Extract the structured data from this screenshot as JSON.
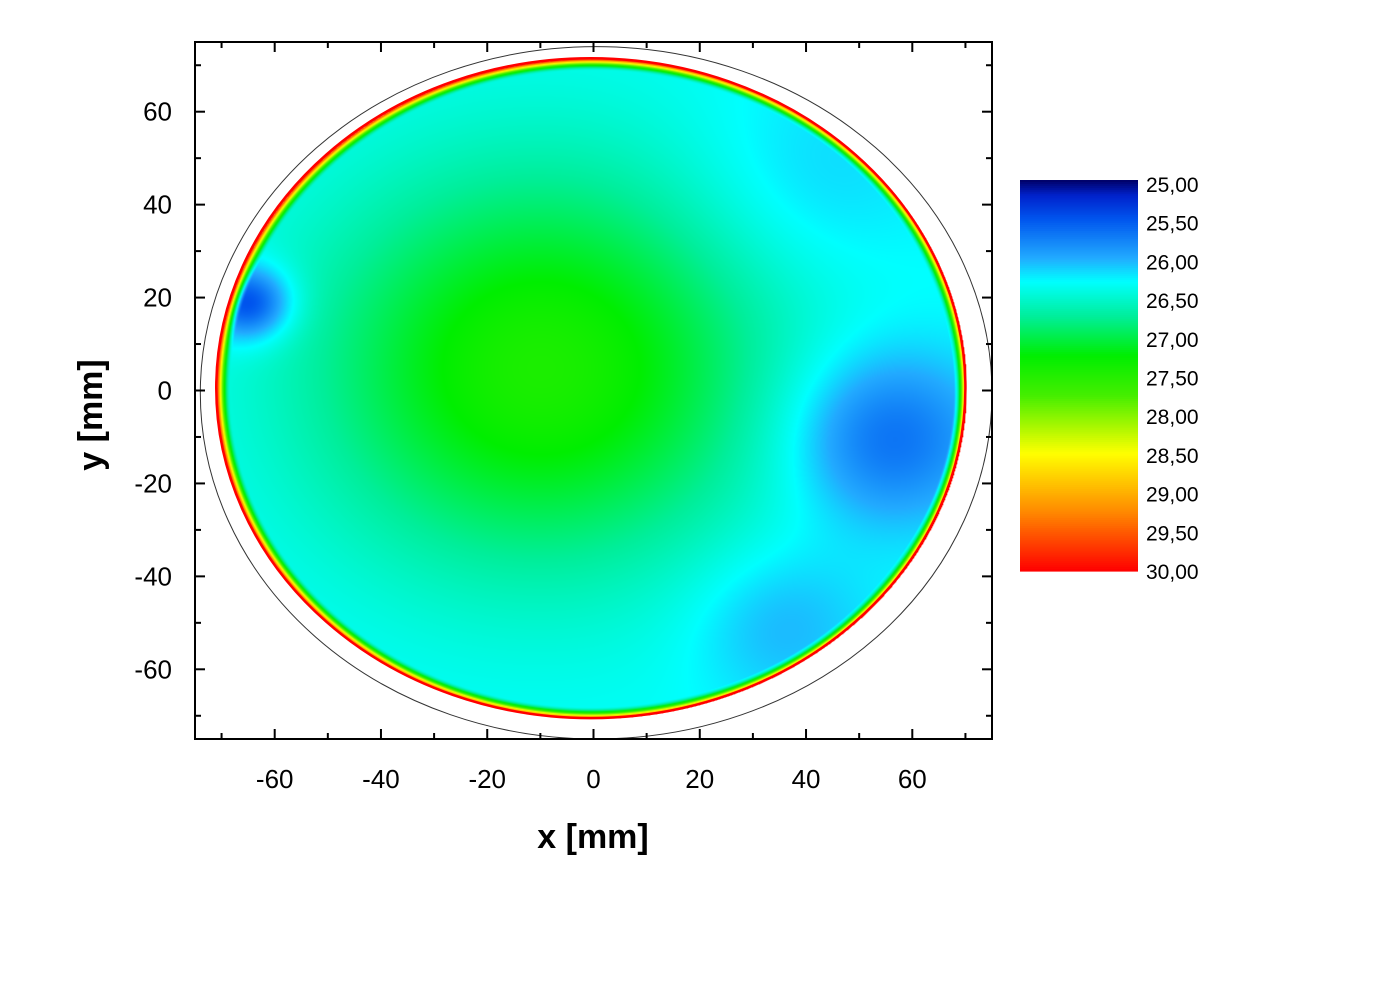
{
  "chart_data": {
    "type": "heatmap",
    "title": "",
    "xlabel": "x [mm]",
    "ylabel": "y [mm]",
    "xlim": [
      -75,
      75
    ],
    "ylim": [
      -75,
      75
    ],
    "x_ticks": [
      -60,
      -40,
      -20,
      0,
      20,
      40,
      60
    ],
    "y_ticks": [
      60,
      40,
      20,
      0,
      -20,
      -40,
      -60
    ],
    "x_tick_labels": [
      "-60",
      "-40",
      "-20",
      "0",
      "20",
      "40",
      "60"
    ],
    "y_tick_labels": [
      "60",
      "40",
      "20",
      "0",
      "-20",
      "-40",
      "-60"
    ],
    "grid": false,
    "colorbar": {
      "min": 25.0,
      "max": 30.0,
      "position": "right",
      "tick_labels": [
        "25,00",
        "25,50",
        "26,00",
        "26,50",
        "27,00",
        "27,50",
        "28,00",
        "28,50",
        "29,00",
        "29,50",
        "30,00"
      ],
      "stops": [
        {
          "value": 25.0,
          "color": "#000066"
        },
        {
          "value": 25.2,
          "color": "#0022cc"
        },
        {
          "value": 25.5,
          "color": "#0055ee"
        },
        {
          "value": 26.0,
          "color": "#22aaff"
        },
        {
          "value": 26.3,
          "color": "#00ffff"
        },
        {
          "value": 26.75,
          "color": "#00ee99"
        },
        {
          "value": 27.25,
          "color": "#00ee00"
        },
        {
          "value": 27.75,
          "color": "#44ee00"
        },
        {
          "value": 28.5,
          "color": "#ffff00"
        },
        {
          "value": 29.25,
          "color": "#ff8800"
        },
        {
          "value": 30.0,
          "color": "#ff0000"
        }
      ]
    },
    "region": {
      "shape": "disk",
      "center": [
        -2,
        0.5
      ],
      "x_range": [
        -71,
        70
      ],
      "y_range": [
        -70.5,
        71.5
      ],
      "edge_value": 30.0,
      "background_value": 26.3,
      "features": [
        {
          "label": "center",
          "x": -10,
          "y": 5,
          "value": 27.45
        },
        {
          "label": "left blue spot",
          "x": -65,
          "y": 19,
          "value": 25.3
        },
        {
          "label": "right blue region",
          "x": 55,
          "y": -10,
          "value": 25.6
        },
        {
          "label": "upper right",
          "x": 40,
          "y": 45,
          "value": 26.1
        },
        {
          "label": "lower right",
          "x": 35,
          "y": -50,
          "value": 26.0
        }
      ]
    },
    "outline": {
      "shape": "circle",
      "center": [
        0,
        0
      ],
      "x_range": [
        -74,
        75
      ],
      "y_range": [
        -75,
        74
      ]
    }
  }
}
